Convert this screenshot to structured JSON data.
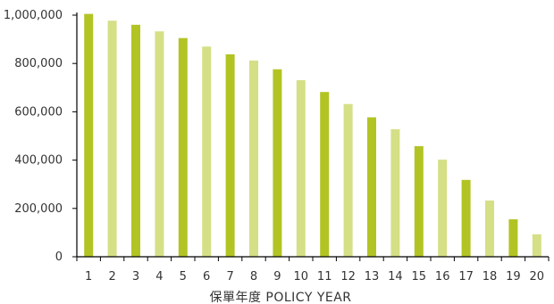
{
  "chart_data": {
    "type": "bar",
    "xlabel": "保單年度 POLICY YEAR",
    "ylabel": "",
    "title": "",
    "ylim": [
      0,
      1000000
    ],
    "grid": false,
    "legend": "none",
    "y_ticks": [
      0,
      200000,
      400000,
      600000,
      800000,
      1000000
    ],
    "y_tick_labels": [
      "0",
      "200,000",
      "400,000",
      "600,000",
      "800,000",
      "1,000,000"
    ],
    "categories": [
      "1",
      "2",
      "3",
      "4",
      "5",
      "6",
      "7",
      "8",
      "9",
      "10",
      "11",
      "12",
      "13",
      "14",
      "15",
      "16",
      "17",
      "18",
      "19",
      "20"
    ],
    "values": [
      1005000,
      977000,
      960000,
      933000,
      905000,
      870000,
      838000,
      812000,
      776000,
      731000,
      682000,
      632000,
      577000,
      528000,
      458000,
      402000,
      318000,
      233000,
      155000,
      93000
    ],
    "colors": {
      "odd_year": "#b2c424",
      "even_year": "#d5df86",
      "axis": "#000000"
    }
  }
}
